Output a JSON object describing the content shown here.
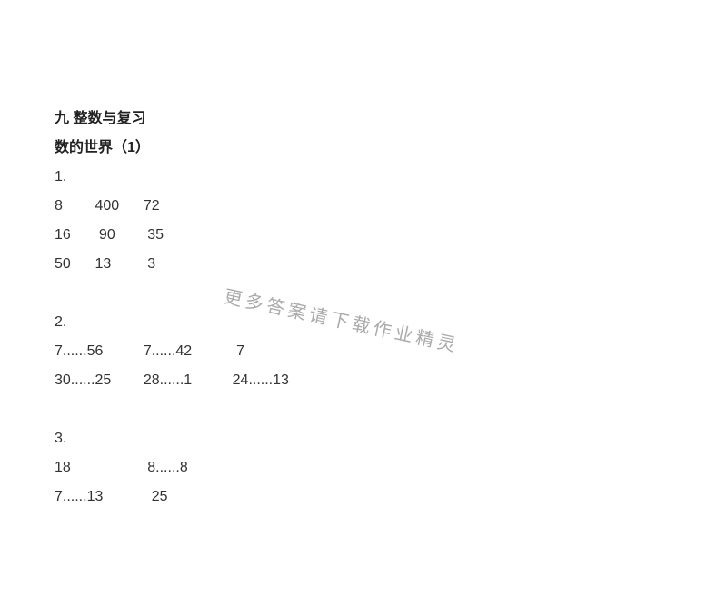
{
  "headings": {
    "chapter": "九 整数与复习",
    "section": "数的世界（1）"
  },
  "blocks": [
    {
      "num": "1.",
      "rows": [
        "8        400      72",
        "16       90        35",
        "50      13         3"
      ]
    },
    {
      "num": "2.",
      "rows": [
        "7......56          7......42           7",
        "30......25        28......1          24......13"
      ]
    },
    {
      "num": "3.",
      "rows": [
        "18                   8......8",
        "7......13            25"
      ]
    }
  ],
  "watermark": "更多答案请下载作业精灵",
  "styles": {
    "background_color": "#ffffff",
    "text_color": "#333333",
    "heading_color": "#222222",
    "watermark_color": "#aaaaaa",
    "base_fontsize": 16,
    "watermark_fontsize": 20,
    "line_height": 32,
    "watermark_rotation_deg": 12
  }
}
